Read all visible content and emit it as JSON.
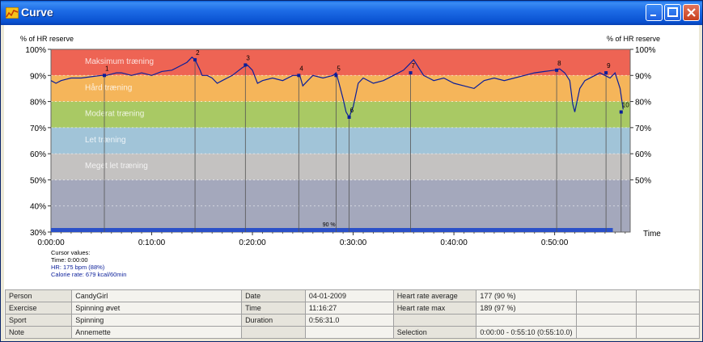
{
  "window": {
    "title": "Curve",
    "icon": "chart-icon"
  },
  "chart_data": {
    "type": "line",
    "ylabel_left": "% of HR reserve",
    "ylabel_right": "% of HR reserve",
    "xlabel": "Time",
    "ylim": [
      30,
      100
    ],
    "y_ticks": [
      "100%",
      "90%",
      "80%",
      "70%",
      "60%",
      "50%",
      "40%",
      "30%"
    ],
    "y_ticks_right": [
      "100%",
      "90%",
      "80%",
      "70%",
      "60%",
      "50%"
    ],
    "x_ticks": [
      "0:00:00",
      "0:10:00",
      "0:20:00",
      "0:30:00",
      "0:40:00",
      "0:50:00"
    ],
    "zones": [
      {
        "name": "Maksimum træning",
        "from": 90,
        "to": 100,
        "color": "#EE6454"
      },
      {
        "name": "Hård træning",
        "from": 80,
        "to": 90,
        "color": "#F5B55A"
      },
      {
        "name": "Moderat træning",
        "from": 70,
        "to": 80,
        "color": "#A9C964"
      },
      {
        "name": "Let træning",
        "from": 60,
        "to": 70,
        "color": "#A1C4D8"
      },
      {
        "name": "Meget let træning",
        "from": 50,
        "to": 60,
        "color": "#C4C2C1"
      },
      {
        "name": "",
        "from": 30,
        "to": 50,
        "color": "#A4A8BC"
      }
    ],
    "series": [
      {
        "color": "#0A1E9A",
        "x": [
          0,
          0.5,
          1,
          1.5,
          2,
          3,
          4,
          5,
          5.5,
          6,
          6.5,
          7,
          8,
          9,
          10,
          11,
          12,
          12.5,
          13,
          13.5,
          14,
          14.3,
          14.8,
          15,
          15.5,
          16,
          16.5,
          17,
          18,
          19,
          19.5,
          20,
          20.5,
          21,
          22,
          23,
          24,
          24.7,
          25,
          25.5,
          26,
          27,
          28,
          28.3,
          28.6,
          29,
          29.3,
          29.6,
          30,
          30.5,
          31,
          32,
          33,
          34,
          35,
          35.5,
          36,
          37,
          37.5,
          38,
          39,
          40,
          41,
          42,
          43,
          44,
          45,
          46,
          47,
          48,
          49,
          50,
          50.5,
          51,
          51.5,
          51.8,
          52,
          52.5,
          53,
          54,
          54.5,
          55,
          55.5,
          56,
          56.5,
          56.8
        ],
        "y": [
          88,
          87,
          88,
          88.5,
          89,
          89,
          89.5,
          90,
          90,
          90.5,
          91,
          91,
          90,
          91,
          90,
          91.5,
          92,
          93,
          94,
          95,
          97,
          96,
          92,
          90,
          90,
          89,
          87,
          88,
          90,
          93,
          94,
          92,
          87,
          88,
          89,
          88,
          90,
          90,
          86,
          88,
          90,
          89,
          90,
          91,
          87,
          81,
          76,
          74,
          78,
          87,
          89,
          87,
          88,
          90,
          92,
          94,
          96,
          90,
          89,
          88,
          89,
          87,
          86,
          85,
          88,
          89,
          88,
          89,
          90,
          91,
          91.5,
          92,
          92.5,
          91,
          88,
          79,
          76,
          85,
          88,
          90,
          91,
          90,
          89,
          91,
          85,
          77
        ]
      }
    ],
    "markers": [
      {
        "label": "1",
        "x": 5.3,
        "y": 90
      },
      {
        "label": "2",
        "x": 14.3,
        "y": 96
      },
      {
        "label": "3",
        "x": 19.3,
        "y": 94
      },
      {
        "label": "4",
        "x": 24.6,
        "y": 90
      },
      {
        "label": "5",
        "x": 28.3,
        "y": 90
      },
      {
        "label": "6",
        "x": 29.6,
        "y": 74
      },
      {
        "label": "7",
        "x": 35.7,
        "y": 91
      },
      {
        "label": "8",
        "x": 50.2,
        "y": 92
      },
      {
        "label": "9",
        "x": 55.1,
        "y": 91
      },
      {
        "label": "10",
        "x": 56.6,
        "y": 76
      }
    ],
    "progress": {
      "label": "90 %",
      "value": 0.97
    },
    "cursor_values": {
      "title": "Cursor values:",
      "time": "Time: 0:00:00",
      "hr": "HR: 175 bpm (88%)",
      "calorie": "Calorie rate: 679 kcal/60min"
    }
  },
  "info": {
    "rows": [
      [
        "Person",
        "CandyGirl",
        "Date",
        "04-01-2009",
        "Heart rate average",
        "177 (90 %)",
        "",
        ""
      ],
      [
        "Exercise",
        "Spinning øvet",
        "Time",
        "11:16:27",
        "Heart rate max",
        "189 (97 %)",
        "",
        ""
      ],
      [
        "Sport",
        "Spinning",
        "Duration",
        "0:56:31.0",
        "",
        "",
        "",
        ""
      ],
      [
        "Note",
        "Annemette",
        "",
        "",
        "Selection",
        "0:00:00 - 0:55:10 (0:55:10.0)",
        "",
        ""
      ]
    ]
  }
}
